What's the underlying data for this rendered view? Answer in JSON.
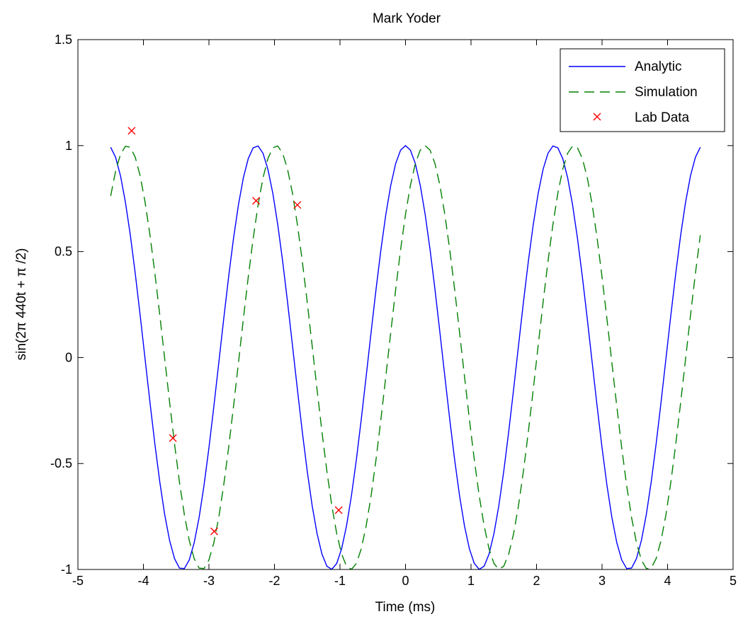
{
  "chart_data": {
    "type": "line",
    "title": "Mark Yoder",
    "xlabel": "Time (ms)",
    "ylabel": "sin(2π 440t + π /2)",
    "xlim": [
      -5,
      5
    ],
    "ylim": [
      -1,
      1.5
    ],
    "x_ticks": [
      -5,
      -4,
      -3,
      -2,
      -1,
      0,
      1,
      2,
      3,
      4,
      5
    ],
    "y_ticks": [
      -1,
      -0.5,
      0,
      0.5,
      1,
      1.5
    ],
    "x_tick_labels": [
      "-5",
      "-4",
      "-3",
      "-2",
      "-1",
      "0",
      "1",
      "2",
      "3",
      "4",
      "5"
    ],
    "y_tick_labels": [
      "-1",
      "-0.5",
      "0",
      "0.5",
      "1",
      "1.5"
    ],
    "grid": false,
    "legend_position": "top-right",
    "series": [
      {
        "name": "Analytic",
        "style": "solid",
        "color": "#0000ff",
        "function": "cos(2*pi*0.44*t)",
        "x_range": [
          -4.5,
          4.5
        ],
        "samples": 121
      },
      {
        "name": "Simulation",
        "style": "dashed",
        "color": "#008000",
        "function": "cos(2*pi*0.44*(t-0.3))",
        "x_range": [
          -4.5,
          4.5
        ],
        "samples": 121
      },
      {
        "name": "Lab Data",
        "style": "marker-x",
        "color": "#ff0000",
        "x": [
          -4.18,
          -3.55,
          -2.92,
          -2.28,
          -1.65,
          -1.02
        ],
        "y": [
          1.07,
          -0.38,
          -0.82,
          0.74,
          0.72,
          -0.72
        ]
      }
    ]
  }
}
